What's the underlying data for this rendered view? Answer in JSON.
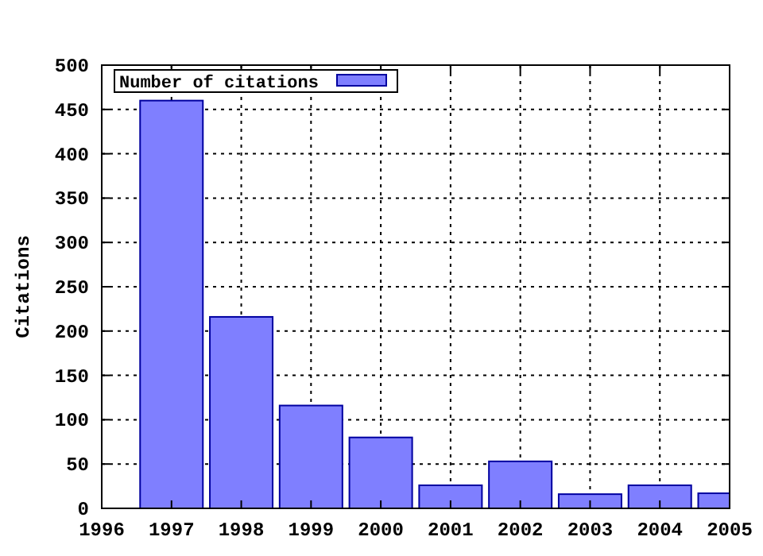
{
  "chart_data": {
    "type": "bar",
    "ylabel": "Citations",
    "x": [
      1997,
      1998,
      1999,
      2000,
      2001,
      2002,
      2003,
      2004,
      2005
    ],
    "series": [
      {
        "name": "Number of citations",
        "color": "#7f7fff",
        "values": [
          460,
          216,
          116,
          80,
          26,
          53,
          16,
          26,
          17
        ]
      }
    ],
    "xlim": [
      1996,
      2005
    ],
    "xticks": [
      1996,
      1997,
      1998,
      1999,
      2000,
      2001,
      2002,
      2003,
      2004,
      2005
    ],
    "ylim": [
      0,
      500
    ],
    "yticks": [
      0,
      50,
      100,
      150,
      200,
      250,
      300,
      350,
      400,
      450,
      500
    ],
    "grid": true,
    "legend": "top left"
  }
}
